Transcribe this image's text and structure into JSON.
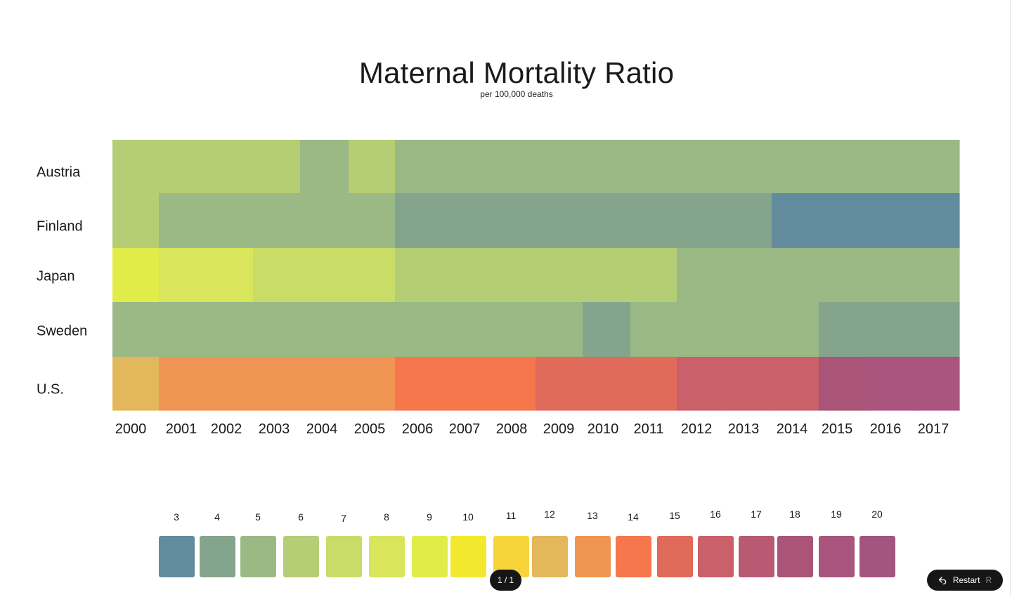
{
  "chart_data": {
    "type": "heatmap",
    "title": "Maternal Mortality Ratio",
    "subtitle": "per 100,000 deaths",
    "x": [
      "2000",
      "2001",
      "2002",
      "2003",
      "2004",
      "2005",
      "2006",
      "2007",
      "2008",
      "2009",
      "2010",
      "2011",
      "2012",
      "2013",
      "2014",
      "2015",
      "2016",
      "2017"
    ],
    "y": [
      "Austria",
      "Finland",
      "Japan",
      "Sweden",
      "U.S."
    ],
    "values": [
      [
        6,
        6,
        6,
        6,
        5,
        6,
        5,
        5,
        5,
        5,
        5,
        5,
        5,
        5,
        5,
        5,
        5,
        5
      ],
      [
        6,
        5,
        5,
        5,
        5,
        5,
        4,
        4,
        4,
        4,
        4,
        4,
        4,
        4,
        3,
        3,
        3,
        3
      ],
      [
        9,
        8,
        8,
        7,
        7,
        7,
        6,
        6,
        6,
        6,
        6,
        6,
        5,
        5,
        5,
        5,
        5,
        5
      ],
      [
        5,
        5,
        5,
        5,
        5,
        5,
        5,
        5,
        5,
        5,
        4,
        5,
        5,
        5,
        5,
        4,
        4,
        4
      ],
      [
        12,
        13,
        13,
        13,
        13,
        13,
        14,
        14,
        14,
        15,
        15,
        15,
        16,
        16,
        16,
        18,
        19,
        19
      ]
    ],
    "legend": {
      "values": [
        3,
        4,
        5,
        6,
        7,
        8,
        9,
        10,
        11,
        12,
        13,
        14,
        15,
        16,
        17,
        18,
        19,
        20
      ],
      "colors": [
        "#628b9e",
        "#84a58c",
        "#9ab985",
        "#b5cd74",
        "#c9dc68",
        "#d9e55a",
        "#e1ec48",
        "#f2e92e",
        "#f7d53a",
        "#e3b75b",
        "#f09453",
        "#f6774b",
        "#e06b5a",
        "#c9606a",
        "#b75a72",
        "#aa5478",
        "#a9557e",
        "#a35580"
      ]
    }
  },
  "controls": {
    "page_indicator": "1 / 1",
    "restart_label": "Restart",
    "restart_shortcut": "R",
    "restart_icon": "undo-arrow-icon"
  }
}
